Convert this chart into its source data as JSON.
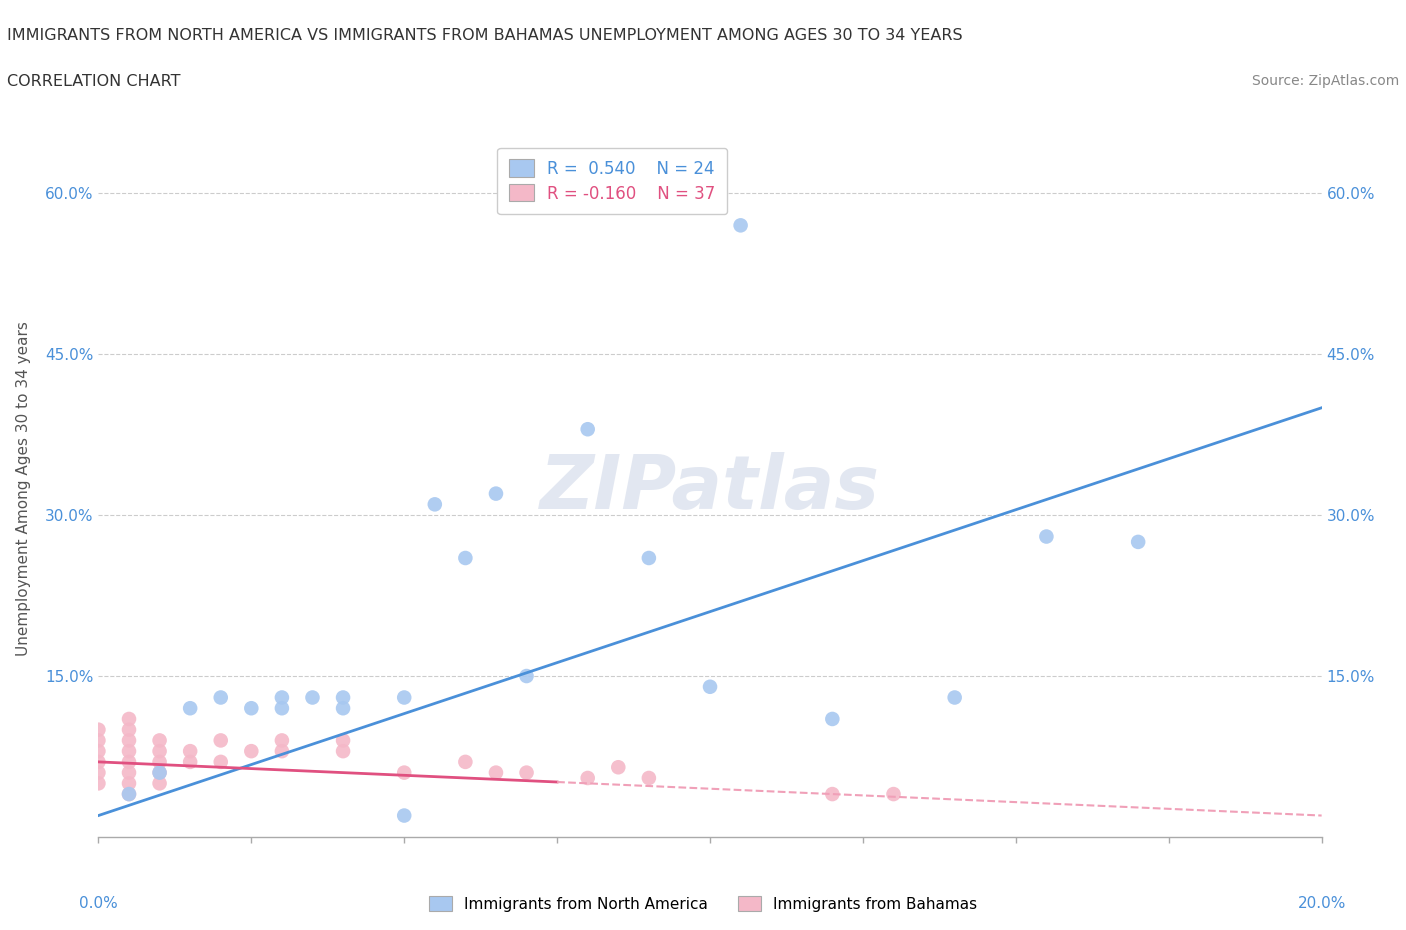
{
  "title_line1": "IMMIGRANTS FROM NORTH AMERICA VS IMMIGRANTS FROM BAHAMAS UNEMPLOYMENT AMONG AGES 30 TO 34 YEARS",
  "title_line2": "CORRELATION CHART",
  "source": "Source: ZipAtlas.com",
  "ylabel": "Unemployment Among Ages 30 to 34 years",
  "ytick_vals": [
    0.15,
    0.3,
    0.45,
    0.6
  ],
  "ytick_labels": [
    "15.0%",
    "30.0%",
    "45.0%",
    "60.0%"
  ],
  "xlim": [
    0.0,
    0.2
  ],
  "ylim": [
    0.0,
    0.65
  ],
  "blue_color": "#a8c8f0",
  "pink_color": "#f4b8c8",
  "blue_line_color": "#4a90d9",
  "pink_line_color": "#e05080",
  "pink_dash_color": "#f0a0b8",
  "na_x": [
    0.005,
    0.01,
    0.015,
    0.02,
    0.025,
    0.03,
    0.03,
    0.035,
    0.04,
    0.04,
    0.05,
    0.055,
    0.06,
    0.065,
    0.07,
    0.08,
    0.09,
    0.1,
    0.105,
    0.12,
    0.14,
    0.155,
    0.17,
    0.05
  ],
  "na_y": [
    0.04,
    0.06,
    0.12,
    0.13,
    0.12,
    0.13,
    0.12,
    0.13,
    0.13,
    0.12,
    0.13,
    0.31,
    0.26,
    0.32,
    0.15,
    0.38,
    0.26,
    0.14,
    0.57,
    0.11,
    0.13,
    0.28,
    0.275,
    0.02
  ],
  "bah_x": [
    0.0,
    0.0,
    0.0,
    0.0,
    0.0,
    0.0,
    0.005,
    0.005,
    0.005,
    0.005,
    0.005,
    0.005,
    0.005,
    0.005,
    0.01,
    0.01,
    0.01,
    0.01,
    0.01,
    0.015,
    0.015,
    0.02,
    0.02,
    0.025,
    0.03,
    0.03,
    0.04,
    0.04,
    0.05,
    0.06,
    0.065,
    0.07,
    0.08,
    0.085,
    0.09,
    0.12,
    0.13
  ],
  "bah_y": [
    0.06,
    0.07,
    0.08,
    0.09,
    0.1,
    0.05,
    0.04,
    0.05,
    0.06,
    0.07,
    0.08,
    0.09,
    0.1,
    0.11,
    0.05,
    0.06,
    0.07,
    0.08,
    0.09,
    0.07,
    0.08,
    0.07,
    0.09,
    0.08,
    0.08,
    0.09,
    0.08,
    0.09,
    0.06,
    0.07,
    0.06,
    0.06,
    0.055,
    0.065,
    0.055,
    0.04,
    0.04
  ]
}
